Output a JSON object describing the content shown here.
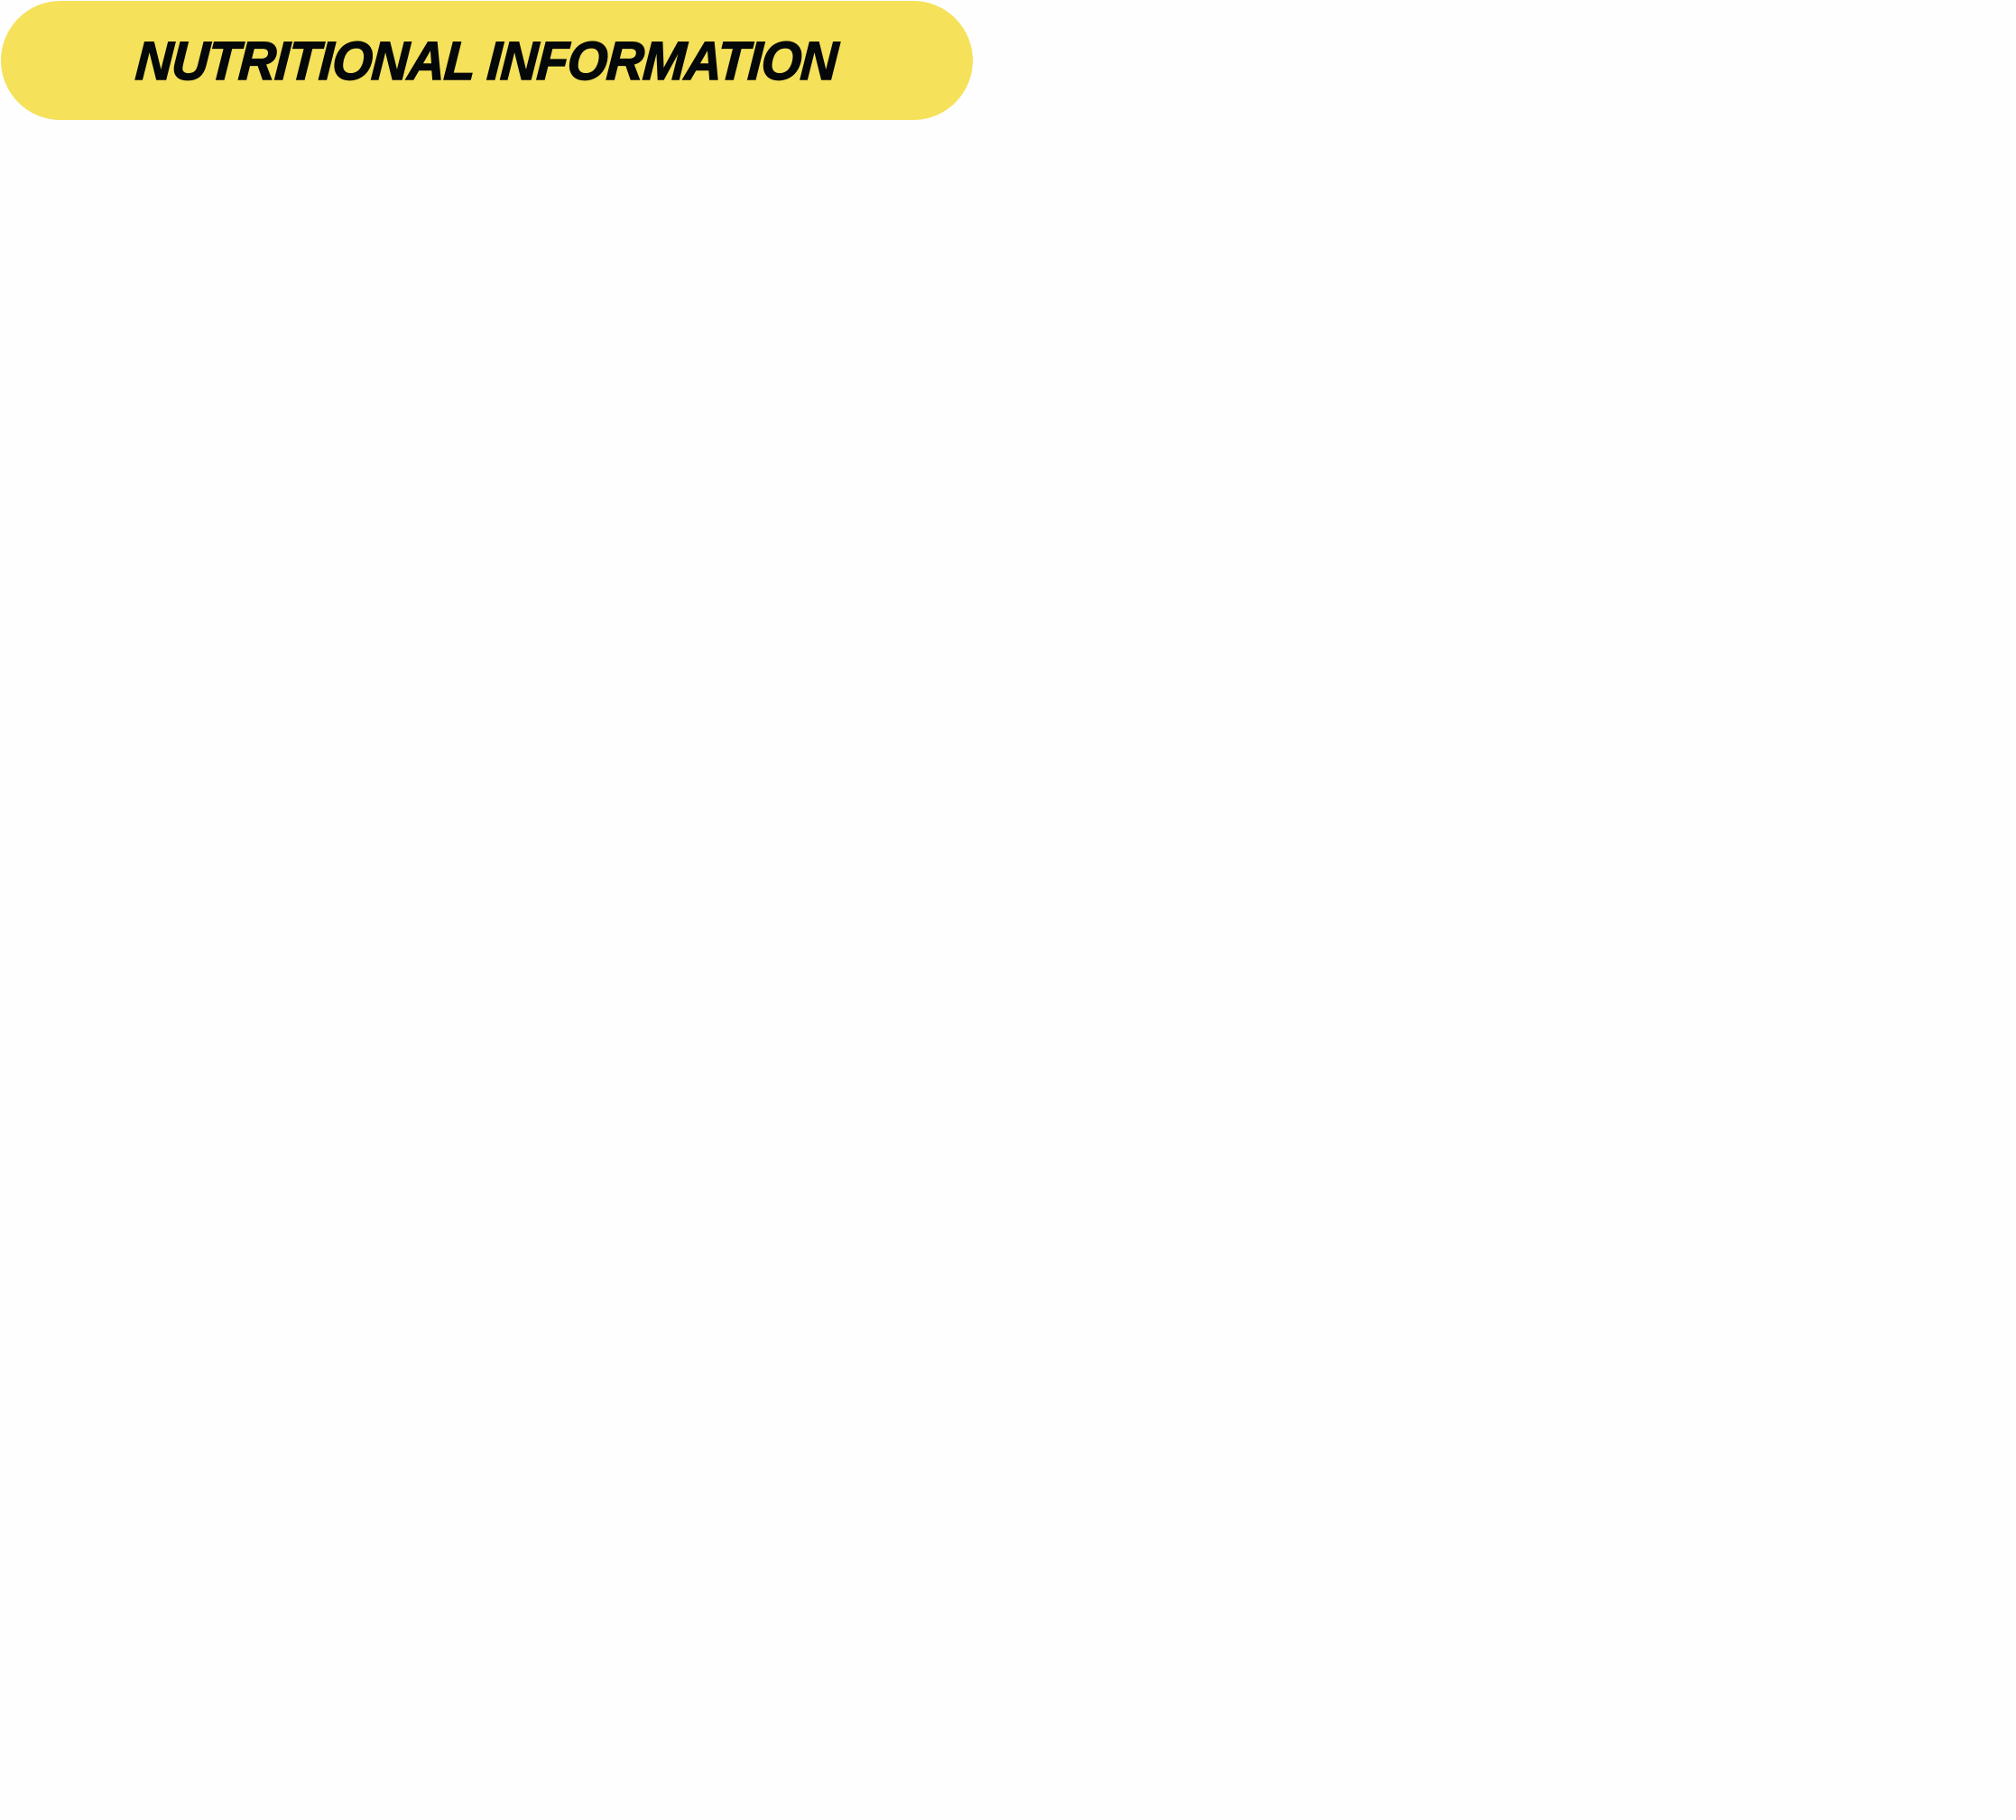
{
  "header": {
    "title": "NUTRITIONAL INFORMATION",
    "accent_color": "#f5e15a",
    "text_color": "#050808"
  }
}
